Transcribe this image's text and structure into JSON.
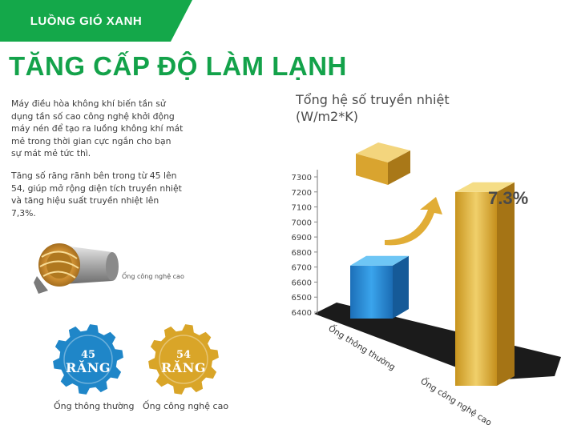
{
  "banner": {
    "label": "LUỒNG GIÓ XANH",
    "color": "#14a84a"
  },
  "headline": "TĂNG CẤP ĐỘ LÀM LẠNH",
  "paragraphs": [
    "Máy điều hòa không khí biến tần sử dụng tần số cao công nghệ khởi động máy nén để tạo ra luồng không khí mát mẻ trong thời gian cực ngắn cho bạn sự mát mẻ tức thì.",
    "Tăng số răng rãnh bên trong từ 45 lên 54, giúp mở rộng diện tích truyền nhiệt và tăng hiệu suất truyền nhiệt lên 7,3%."
  ],
  "pipe_label": "Ống công nghệ cao",
  "gears": [
    {
      "number": "45",
      "word": "RĂNG",
      "caption": "Ống thông thường",
      "color": "#1f86c8"
    },
    {
      "number": "54",
      "word": "RĂNG",
      "caption": "Ống công nghệ cao",
      "color": "#d9a528"
    }
  ],
  "chart_data": {
    "type": "bar",
    "title": "Tổng hệ số truyền nhiệt\n(W/m2*K)",
    "y_ticks": [
      "7300",
      "7200",
      "7100",
      "7000",
      "6900",
      "6800",
      "6700",
      "6600",
      "6500",
      "6400"
    ],
    "ylim": [
      6400,
      7300
    ],
    "categories": [
      "Ống thông thường",
      "Ống công nghệ cao"
    ],
    "values": [
      6710,
      7200
    ],
    "colors": [
      "#2a8fd6",
      "#e2b43a"
    ],
    "annotation": "7.3%",
    "grid": false
  }
}
